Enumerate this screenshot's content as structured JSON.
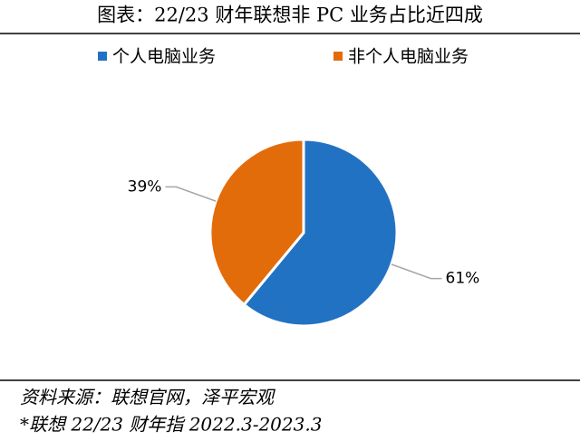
{
  "chart_data": {
    "type": "pie",
    "title": "图表：22/23 财年联想非 PC 业务占比近四成",
    "categories": [
      "个人电脑业务",
      "非个人电脑业务"
    ],
    "values": [
      61,
      39
    ],
    "value_labels": [
      "61%",
      "39%"
    ],
    "colors": [
      "#2272c3",
      "#e36c0a"
    ],
    "notes": [
      "资料来源：联想官网，泽平宏观",
      "*联想 22/23 财年指 2022.3-2023.3"
    ]
  }
}
